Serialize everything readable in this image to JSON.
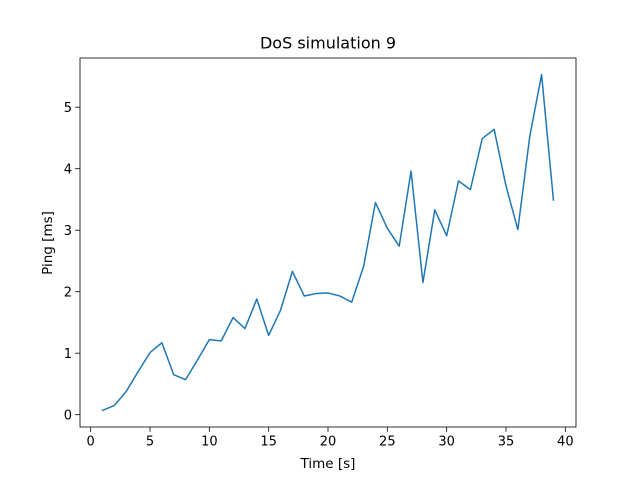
{
  "chart_data": {
    "type": "line",
    "title": "DoS simulation 9",
    "xlabel": "Time [s]",
    "ylabel": "Ping [ms]",
    "xlim": [
      -0.9,
      40.9
    ],
    "ylim": [
      -0.2,
      5.8
    ],
    "xticks": [
      0,
      5,
      10,
      15,
      20,
      25,
      30,
      35,
      40
    ],
    "yticks": [
      0,
      1,
      2,
      3,
      4,
      5
    ],
    "grid": false,
    "line_color": "#1f77b4",
    "series": [
      {
        "x": [
          1,
          2,
          3,
          4,
          5,
          6,
          7,
          8,
          9,
          10,
          11,
          12,
          13,
          14,
          15,
          16,
          17,
          18,
          19,
          20,
          21,
          22,
          23,
          24,
          25,
          26,
          27,
          28,
          29,
          30,
          31,
          32,
          33,
          34,
          35,
          36,
          37,
          38,
          39
        ],
        "values": [
          0.07,
          0.15,
          0.38,
          0.7,
          1.01,
          1.17,
          0.65,
          0.57,
          0.89,
          1.22,
          1.2,
          1.58,
          1.4,
          1.88,
          1.29,
          1.7,
          2.33,
          1.93,
          1.97,
          1.98,
          1.93,
          1.83,
          2.41,
          3.45,
          3.03,
          2.74,
          3.96,
          2.15,
          3.33,
          2.91,
          3.8,
          3.66,
          4.49,
          4.64,
          3.72,
          3.01,
          4.52,
          5.53,
          3.49
        ]
      }
    ]
  }
}
